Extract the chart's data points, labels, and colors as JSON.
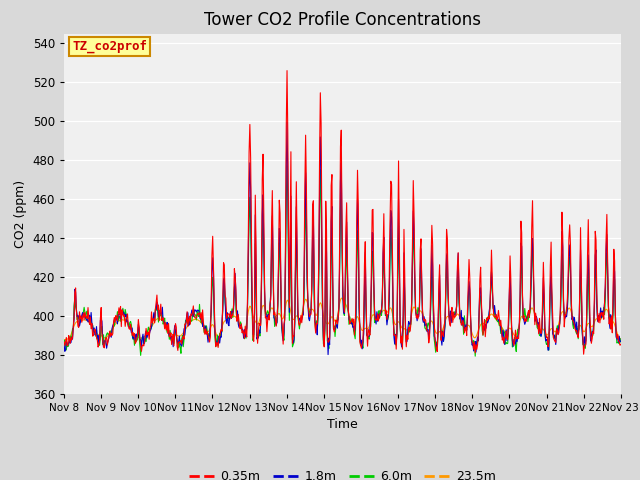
{
  "title": "Tower CO2 Profile Concentrations",
  "xlabel": "Time",
  "ylabel": "CO2 (ppm)",
  "ylim": [
    360,
    545
  ],
  "yticks": [
    360,
    380,
    400,
    420,
    440,
    460,
    480,
    500,
    520,
    540
  ],
  "x_labels": [
    "Nov 8",
    "Nov 9",
    "Nov 10",
    "Nov 11",
    "Nov 12",
    "Nov 13",
    "Nov 14",
    "Nov 15",
    "Nov 16",
    "Nov 17",
    "Nov 18",
    "Nov 19",
    "Nov 20",
    "Nov 21",
    "Nov 22",
    "Nov 23"
  ],
  "series": [
    {
      "label": "0.35m",
      "color": "#ff0000"
    },
    {
      "label": "1.8m",
      "color": "#0000cc"
    },
    {
      "label": "6.0m",
      "color": "#00cc00"
    },
    {
      "label": "23.5m",
      "color": "#ff9900"
    }
  ],
  "annotation_label": "TZ_co2prof",
  "annotation_color": "#ffff99",
  "annotation_border": "#cc8800",
  "fig_bg_color": "#d9d9d9",
  "plot_bg_color": "#f0f0f0",
  "grid_color": "#ffffff",
  "figsize": [
    6.4,
    4.8
  ],
  "dpi": 100
}
